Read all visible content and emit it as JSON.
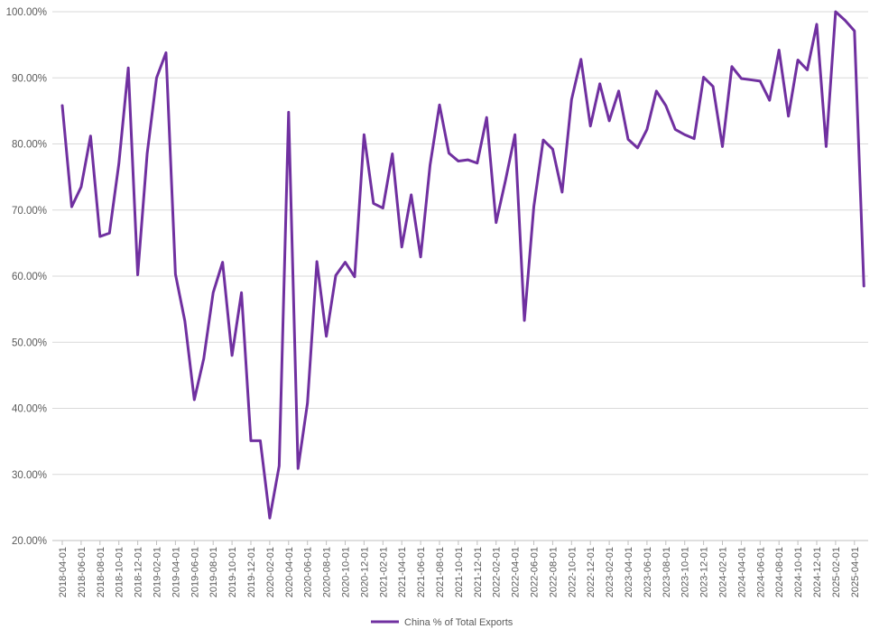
{
  "colors": {
    "series": "#7030A0",
    "grid": "#d9d9d9",
    "axis": "#bfbfbf",
    "text": "#595959"
  },
  "chart_data": {
    "type": "line",
    "title": "",
    "xlabel": "",
    "ylabel": "",
    "ylim": [
      0.2,
      1.0
    ],
    "y_ticks": [
      "20.00%",
      "30.00%",
      "40.00%",
      "50.00%",
      "60.00%",
      "70.00%",
      "80.00%",
      "90.00%",
      "100.00%"
    ],
    "grid": true,
    "legend_position": "bottom",
    "x_tick_labels": [
      "2018-04-01",
      "2018-06-01",
      "2018-08-01",
      "2018-10-01",
      "2018-12-01",
      "2019-02-01",
      "2019-04-01",
      "2019-06-01",
      "2019-08-01",
      "2019-10-01",
      "2019-12-01",
      "2020-02-01",
      "2020-04-01",
      "2020-06-01",
      "2020-08-01",
      "2020-10-01",
      "2020-12-01",
      "2021-02-01",
      "2021-04-01",
      "2021-06-01",
      "2021-08-01",
      "2021-10-01",
      "2021-12-01",
      "2022-02-01",
      "2022-04-01",
      "2022-06-01",
      "2022-08-01",
      "2022-10-01",
      "2022-12-01",
      "2023-02-01",
      "2023-04-01",
      "2023-06-01",
      "2023-08-01",
      "2023-10-01",
      "2023-12-01",
      "2024-02-01",
      "2024-04-01",
      "2024-06-01",
      "2024-08-01",
      "2024-10-01",
      "2024-12-01",
      "2025-02-01",
      "2025-04-01"
    ],
    "series": [
      {
        "name": "China % of Total Exports",
        "x": [
          "2018-04-01",
          "2018-05-01",
          "2018-06-01",
          "2018-07-01",
          "2018-08-01",
          "2018-09-01",
          "2018-10-01",
          "2018-11-01",
          "2018-12-01",
          "2019-01-01",
          "2019-02-01",
          "2019-03-01",
          "2019-04-01",
          "2019-05-01",
          "2019-06-01",
          "2019-07-01",
          "2019-08-01",
          "2019-09-01",
          "2019-10-01",
          "2019-11-01",
          "2019-12-01",
          "2020-01-01",
          "2020-02-01",
          "2020-03-01",
          "2020-04-01",
          "2020-05-01",
          "2020-06-01",
          "2020-07-01",
          "2020-08-01",
          "2020-09-01",
          "2020-10-01",
          "2020-11-01",
          "2020-12-01",
          "2021-01-01",
          "2021-02-01",
          "2021-03-01",
          "2021-04-01",
          "2021-05-01",
          "2021-06-01",
          "2021-07-01",
          "2021-08-01",
          "2021-09-01",
          "2021-10-01",
          "2021-11-01",
          "2021-12-01",
          "2022-01-01",
          "2022-02-01",
          "2022-03-01",
          "2022-04-01",
          "2022-05-01",
          "2022-06-01",
          "2022-07-01",
          "2022-08-01",
          "2022-09-01",
          "2022-10-01",
          "2022-11-01",
          "2022-12-01",
          "2023-01-01",
          "2023-02-01",
          "2023-03-01",
          "2023-04-01",
          "2023-05-01",
          "2023-06-01",
          "2023-07-01",
          "2023-08-01",
          "2023-09-01",
          "2023-10-01",
          "2023-11-01",
          "2023-12-01",
          "2024-01-01",
          "2024-02-01",
          "2024-03-01",
          "2024-04-01",
          "2024-05-01",
          "2024-06-01",
          "2024-07-01",
          "2024-08-01",
          "2024-09-01",
          "2024-10-01",
          "2024-11-01",
          "2024-12-01",
          "2025-01-01",
          "2025-02-01",
          "2025-03-01",
          "2025-04-01",
          "2025-05-01"
        ],
        "values": [
          0.858,
          0.705,
          0.735,
          0.812,
          0.66,
          0.665,
          0.77,
          0.915,
          0.602,
          0.785,
          0.9,
          0.938,
          0.603,
          0.532,
          0.413,
          0.475,
          0.575,
          0.621,
          0.48,
          0.575,
          0.351,
          0.351,
          0.234,
          0.313,
          0.848,
          0.309,
          0.408,
          0.622,
          0.509,
          0.601,
          0.621,
          0.599,
          0.814,
          0.71,
          0.703,
          0.785,
          0.644,
          0.723,
          0.629,
          0.768,
          0.859,
          0.786,
          0.774,
          0.776,
          0.771,
          0.84,
          0.681,
          0.745,
          0.814,
          0.533,
          0.705,
          0.806,
          0.792,
          0.727,
          0.867,
          0.928,
          0.827,
          0.891,
          0.835,
          0.88,
          0.807,
          0.794,
          0.822,
          0.88,
          0.858,
          0.822,
          0.814,
          0.808,
          0.901,
          0.887,
          0.796,
          0.917,
          0.899,
          0.897,
          0.895,
          0.866,
          0.942,
          0.842,
          0.927,
          0.912,
          0.981,
          0.796,
          1.0,
          0.987,
          0.971,
          0.585
        ]
      }
    ]
  }
}
